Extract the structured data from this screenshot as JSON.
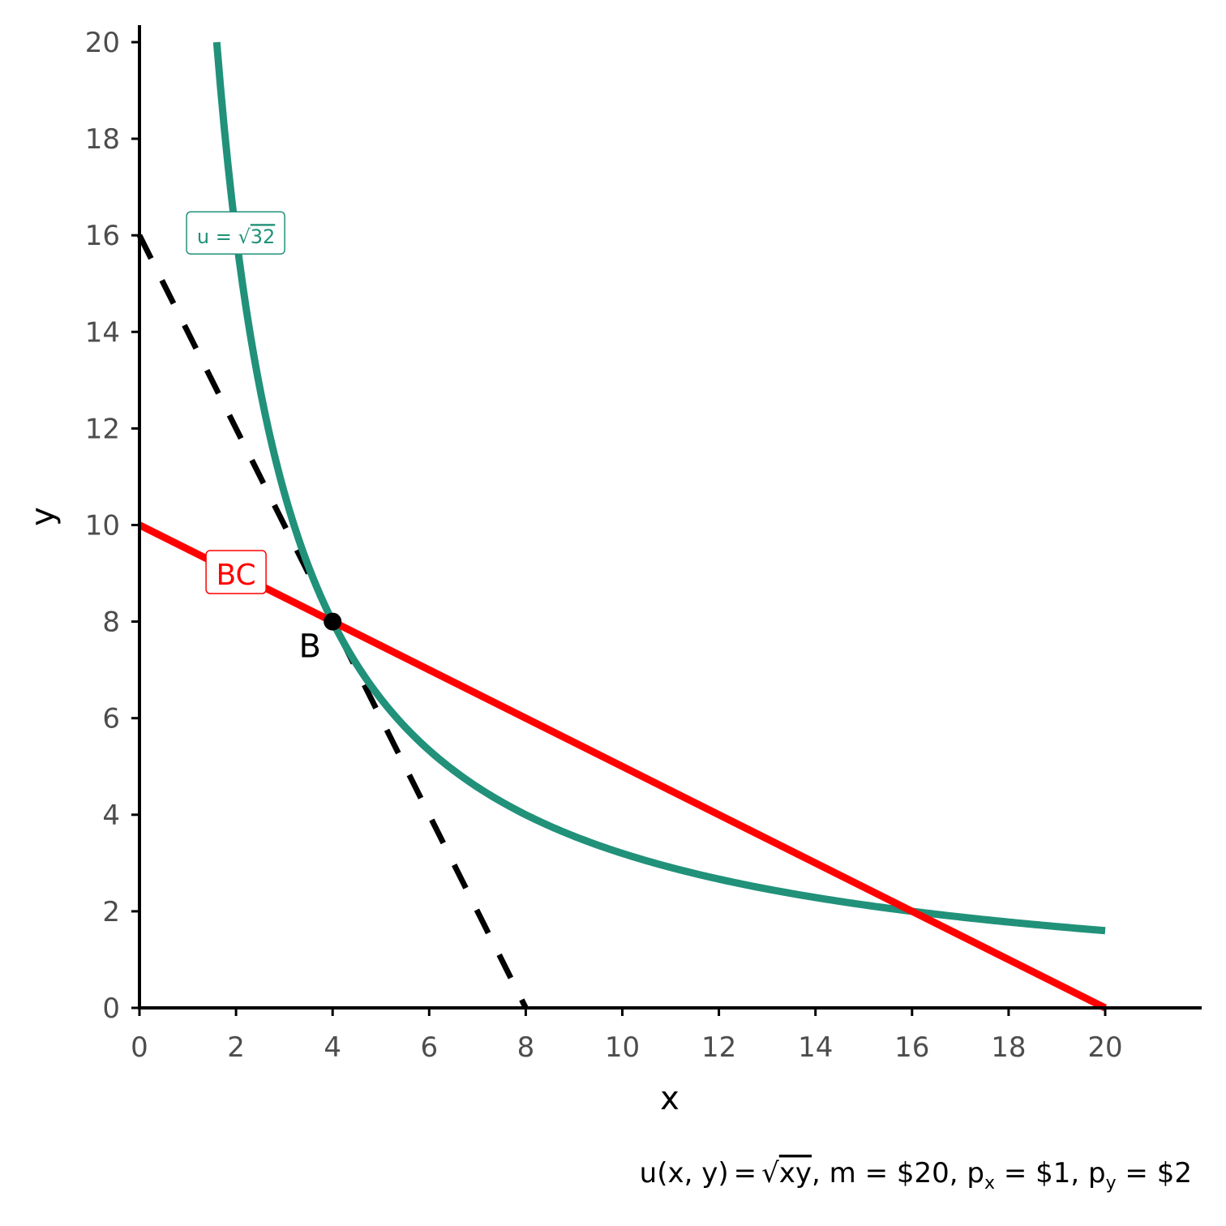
{
  "chart_data": {
    "type": "line",
    "xlabel": "x",
    "ylabel": "y",
    "xlim": [
      0,
      22
    ],
    "ylim": [
      0,
      22
    ],
    "x_ticks": [
      0,
      2,
      4,
      6,
      8,
      10,
      12,
      14,
      16,
      18,
      20
    ],
    "y_ticks": [
      0,
      2,
      4,
      6,
      8,
      10,
      12,
      14,
      16,
      18,
      20
    ],
    "grid": false,
    "caption": {
      "prefix": "u",
      "args": "(x, y)",
      "eq": "=",
      "sqrt_arg": "xy",
      "rest1": ", m = $20, p",
      "sub_x": "x",
      "rest2": " = $1, p",
      "sub_y": "y",
      "rest3": " = $2"
    },
    "series": [
      {
        "name": "BC",
        "kind": "budget-constraint",
        "color": "#ff0000",
        "style": "solid",
        "x": [
          0,
          20
        ],
        "y": [
          10,
          0
        ],
        "label": {
          "text": "BC",
          "at": [
            2,
            9
          ]
        }
      },
      {
        "name": "u = √32",
        "kind": "indifference-curve",
        "color": "#21917a",
        "style": "solid",
        "equation": "y = 32 / x",
        "x_range": [
          1.6,
          20
        ],
        "label": {
          "text_prefix": "u = ",
          "sqrt_arg": "32",
          "at": [
            2,
            16
          ]
        }
      },
      {
        "name": "tangent",
        "kind": "tangent-line",
        "color": "#000000",
        "style": "dashed",
        "x": [
          0,
          8
        ],
        "y": [
          16,
          0
        ]
      }
    ],
    "points": [
      {
        "label": "B",
        "x": 4,
        "y": 8,
        "color": "#000000"
      }
    ]
  }
}
